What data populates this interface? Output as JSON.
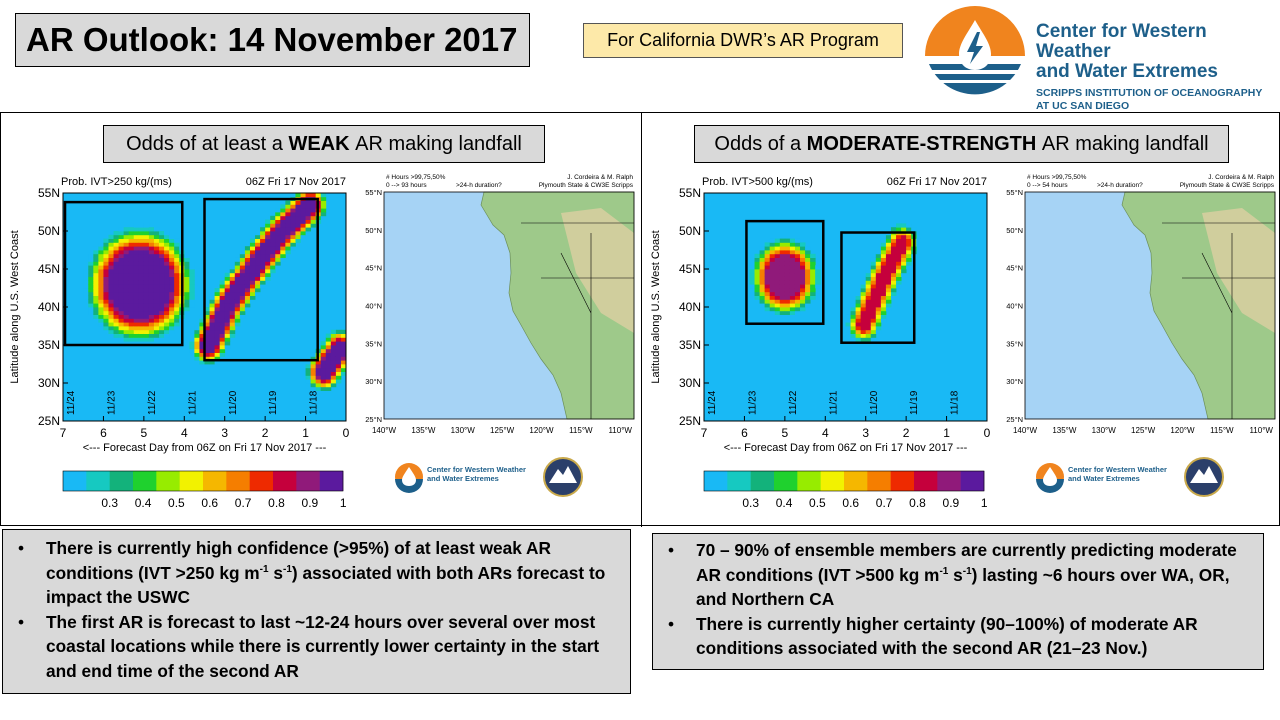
{
  "header": {
    "title": "AR Outlook: 14 November 2017",
    "program": "For California DWR’s AR Program",
    "logo": {
      "name_line1": "Center for Western Weather",
      "name_line2": "and Water Extremes",
      "sub_line1": "SCRIPPS INSTITUTION OF OCEANOGRAPHY",
      "sub_line2": "AT UC SAN DIEGO",
      "icon": "water-drop-lightning-icon"
    }
  },
  "colors": {
    "ocean": "#a6d3f5",
    "logo_orange": "#f0841e",
    "logo_blue": "#1d5f8a",
    "box_gray": "#d9d9d9",
    "program_yellow": "#fde9a9"
  },
  "panels": [
    {
      "heading_pre": "Odds of at least a ",
      "heading_bold": "WEAK",
      "heading_post": " AR making landfall",
      "chart": {
        "prob_label": "Prob. IVT>250 kg/(ms)",
        "time_label": "06Z Fri 17 Nov 2017",
        "ylabel": "Latitude along U.S. West Coast",
        "xlabel": "<--- Forecast Day from 06Z on Fri 17 Nov 2017 ---",
        "map_header_left1": "# Hours >99,75,50%",
        "map_header_left2": "0 --> 93 hours",
        "map_header_mid": ">24-h duration?",
        "map_header_right1": "J. Cordeira & M. Ralph",
        "map_header_right2": "Plymouth State & CW3E Scripps"
      }
    },
    {
      "heading_pre": "Odds of a ",
      "heading_bold": "MODERATE-STRENGTH",
      "heading_post": " AR making landfall",
      "chart": {
        "prob_label": "Prob. IVT>500 kg/(ms)",
        "time_label": "06Z Fri 17 Nov 2017",
        "ylabel": "Latitude along U.S. West Coast",
        "xlabel": "<--- Forecast Day from 06Z on Fri 17 Nov 2017 ---",
        "map_header_left1": "# Hours >99,75,50%",
        "map_header_left2": "0 --> 54 hours",
        "map_header_mid": ">24-h duration?",
        "map_header_right1": "J. Cordeira & M. Ralph",
        "map_header_right2": "Plymouth State & CW3E Scripps"
      }
    }
  ],
  "chart_data": [
    {
      "type": "heatmap",
      "title": "Prob. IVT>250 kg/(ms)",
      "subtitle": "06Z Fri 17 Nov 2017",
      "xlabel": "<--- Forecast Day from 06Z on Fri 17 Nov 2017 ---",
      "ylabel": "Latitude along U.S. West Coast",
      "x_range": [
        7,
        0
      ],
      "x_ticks": [
        7,
        6,
        5,
        4,
        3,
        2,
        1,
        0
      ],
      "y_range": [
        25,
        55
      ],
      "y_ticks": [
        "25N",
        "30N",
        "35N",
        "40N",
        "45N",
        "50N",
        "55N"
      ],
      "date_labels": [
        "11/24",
        "11/23",
        "11/22",
        "11/21",
        "11/20",
        "11/19",
        "11/18"
      ],
      "colorbar_ticks": [
        "0.3",
        "0.4",
        "0.5",
        "0.6",
        "0.7",
        "0.8",
        "0.9",
        "1"
      ],
      "colorbar_colors": [
        "#19b9f5",
        "#16c9c1",
        "#13b27b",
        "#1fd12e",
        "#97ec00",
        "#f2f200",
        "#f5b700",
        "#f57e00",
        "#ee2a00",
        "#c5003c",
        "#901a7a",
        "#5b1a9e"
      ],
      "features": [
        {
          "kind": "blob",
          "day_center": 5.1,
          "lat_center": 43,
          "day_span": 1.5,
          "lat_span": 8.5,
          "peak": 1.0
        },
        {
          "kind": "band",
          "path": [
            [
              3.4,
              35.0
            ],
            [
              2.9,
              40.5
            ],
            [
              2.2,
              45.8
            ],
            [
              1.6,
              49.8
            ],
            [
              0.9,
              53.4
            ]
          ],
          "peak": 1.0
        },
        {
          "kind": "band",
          "path": [
            [
              0.55,
              31.5
            ],
            [
              0.15,
              34.5
            ]
          ],
          "peak": 1.0
        }
      ],
      "boxes": [
        {
          "day_from": 6.95,
          "day_to": 4.05,
          "lat_from": 35.0,
          "lat_to": 53.8
        },
        {
          "day_from": 3.5,
          "day_to": 0.7,
          "lat_from": 33.0,
          "lat_to": 54.2
        }
      ],
      "map": {
        "lon_ticks": [
          "140°W",
          "135°W",
          "130°W",
          "125°W",
          "120°W",
          "115°W",
          "110°W"
        ],
        "lat_ticks": [
          "25°N",
          "30°N",
          "35°N",
          "40°N",
          "45°N",
          "50°N",
          "55°N"
        ]
      }
    },
    {
      "type": "heatmap",
      "title": "Prob. IVT>500 kg/(ms)",
      "subtitle": "06Z Fri 17 Nov 2017",
      "xlabel": "<--- Forecast Day from 06Z on Fri 17 Nov 2017 ---",
      "ylabel": "Latitude along U.S. West Coast",
      "x_range": [
        7,
        0
      ],
      "x_ticks": [
        7,
        6,
        5,
        4,
        3,
        2,
        1,
        0
      ],
      "y_range": [
        25,
        55
      ],
      "y_ticks": [
        "25N",
        "30N",
        "35N",
        "40N",
        "45N",
        "50N",
        "55N"
      ],
      "date_labels": [
        "11/24",
        "11/23",
        "11/22",
        "11/21",
        "11/20",
        "11/19",
        "11/18"
      ],
      "colorbar_ticks": [
        "0.3",
        "0.4",
        "0.5",
        "0.6",
        "0.7",
        "0.8",
        "0.9",
        "1"
      ],
      "colorbar_colors": [
        "#19b9f5",
        "#16c9c1",
        "#13b27b",
        "#1fd12e",
        "#97ec00",
        "#f2f200",
        "#f5b700",
        "#f57e00",
        "#ee2a00",
        "#c5003c",
        "#901a7a",
        "#5b1a9e"
      ],
      "features": [
        {
          "kind": "blob",
          "day_center": 5.0,
          "lat_center": 44,
          "day_span": 0.95,
          "lat_span": 5.8,
          "peak": 0.88
        },
        {
          "kind": "band",
          "path": [
            [
              3.05,
              37.8
            ],
            [
              2.5,
              44.5
            ],
            [
              2.1,
              48.5
            ]
          ],
          "peak": 0.8
        }
      ],
      "boxes": [
        {
          "day_from": 5.95,
          "day_to": 4.05,
          "lat_from": 37.8,
          "lat_to": 51.3
        },
        {
          "day_from": 3.6,
          "day_to": 1.8,
          "lat_from": 35.3,
          "lat_to": 49.8
        }
      ],
      "map": {
        "lon_ticks": [
          "140°W",
          "135°W",
          "130°W",
          "125°W",
          "120°W",
          "115°W",
          "110°W"
        ],
        "lat_ticks": [
          "25°N",
          "30°N",
          "35°N",
          "40°N",
          "45°N",
          "50°N",
          "55°N"
        ]
      }
    }
  ],
  "bullets_left": [
    {
      "pre": "There is currently high confidence (>95%) of at least weak AR conditions (IVT >250 kg m",
      "sup1": "-1",
      "mid": " s",
      "sup2": "-1",
      "post": ") associated with both ARs forecast to impact the USWC"
    },
    {
      "pre": "The first AR is forecast to last ~12-24 hours over several over most coastal locations while there is currently lower certainty in the start and end time of the second AR",
      "sup1": "",
      "mid": "",
      "sup2": "",
      "post": ""
    }
  ],
  "bullets_right": [
    {
      "pre": "70 – 90% of ensemble members are currently predicting moderate AR conditions (IVT >500 kg m",
      "sup1": "-1",
      "mid": " s",
      "sup2": "-1",
      "post": ") lasting ~6 hours over WA, OR, and Northern CA"
    },
    {
      "pre": "There is currently higher certainty (90–100%) of moderate AR conditions associated with the second AR (21–23 Nov.)",
      "sup1": "",
      "mid": "",
      "sup2": "",
      "post": ""
    }
  ]
}
